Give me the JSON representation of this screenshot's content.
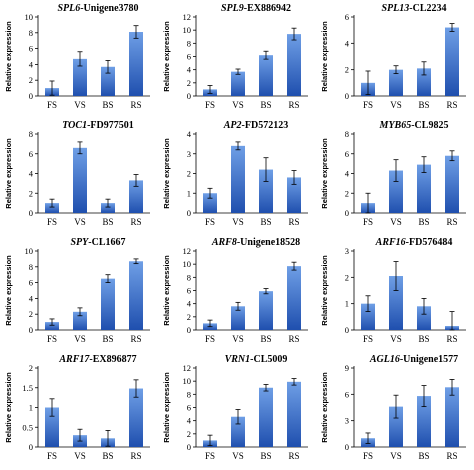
{
  "bar_colors": {
    "top": "#6f9fe6",
    "bottom": "#1f4fae"
  },
  "chart_data": [
    {
      "type": "bar",
      "title_gene": "SPL6",
      "title_id": "-Unigene3780",
      "ylabel": "Relative expression",
      "categories": [
        "FS",
        "VS",
        "BS",
        "RS"
      ],
      "ylim": [
        0,
        10
      ],
      "yticks": [
        0,
        2,
        4,
        6,
        8,
        10
      ],
      "values": [
        1.0,
        4.7,
        3.7,
        8.1
      ],
      "errors": [
        0.9,
        0.9,
        0.8,
        0.8
      ]
    },
    {
      "type": "bar",
      "title_gene": "SPL9",
      "title_id": "-EX886942",
      "ylabel": "Relative expression",
      "categories": [
        "FS",
        "VS",
        "BS",
        "RS"
      ],
      "ylim": [
        0,
        12
      ],
      "yticks": [
        0,
        2,
        4,
        6,
        8,
        10,
        12
      ],
      "values": [
        1.0,
        3.7,
        6.2,
        9.4
      ],
      "errors": [
        0.6,
        0.4,
        0.6,
        0.9
      ]
    },
    {
      "type": "bar",
      "title_gene": "SPL13",
      "title_id": "-CL2234",
      "ylabel": "Relative expression",
      "categories": [
        "FS",
        "VS",
        "BS",
        "RS"
      ],
      "ylim": [
        0,
        6
      ],
      "yticks": [
        0,
        2,
        4,
        6
      ],
      "values": [
        1.0,
        2.0,
        2.1,
        5.2
      ],
      "errors": [
        0.9,
        0.3,
        0.5,
        0.3
      ]
    },
    {
      "type": "bar",
      "title_gene": "TOC1",
      "title_id": "-FD977501",
      "ylabel": "Relative expression",
      "categories": [
        "FS",
        "VS",
        "BS",
        "RS"
      ],
      "ylim": [
        0,
        8
      ],
      "yticks": [
        0,
        2,
        4,
        6,
        8
      ],
      "values": [
        1.0,
        6.6,
        1.0,
        3.3
      ],
      "errors": [
        0.4,
        0.6,
        0.4,
        0.6
      ]
    },
    {
      "type": "bar",
      "title_gene": "AP2",
      "title_id": "-FD572123",
      "ylabel": "Relative expression",
      "categories": [
        "FS",
        "VS",
        "BS",
        "RS"
      ],
      "ylim": [
        0,
        4
      ],
      "yticks": [
        0,
        1,
        2,
        3,
        4
      ],
      "values": [
        1.0,
        3.4,
        2.2,
        1.8
      ],
      "errors": [
        0.25,
        0.2,
        0.6,
        0.35
      ]
    },
    {
      "type": "bar",
      "title_gene": "MYB65",
      "title_id": "-CL9825",
      "ylabel": "Relative expression",
      "categories": [
        "FS",
        "VS",
        "BS",
        "RS"
      ],
      "ylim": [
        0,
        8
      ],
      "yticks": [
        0,
        2,
        4,
        6,
        8
      ],
      "values": [
        1.0,
        4.3,
        4.9,
        5.8
      ],
      "errors": [
        1.0,
        1.1,
        0.8,
        0.5
      ]
    },
    {
      "type": "bar",
      "title_gene": "SPY",
      "title_id": "-CL1667",
      "ylabel": "Relative expression",
      "categories": [
        "FS",
        "VS",
        "BS",
        "RS"
      ],
      "ylim": [
        0,
        10
      ],
      "yticks": [
        0,
        2,
        4,
        6,
        8,
        10
      ],
      "values": [
        1.0,
        2.3,
        6.5,
        8.7
      ],
      "errors": [
        0.4,
        0.5,
        0.5,
        0.3
      ]
    },
    {
      "type": "bar",
      "title_gene": "ARF8",
      "title_id": "-Unigene18528",
      "ylabel": "Relative expression",
      "categories": [
        "FS",
        "VS",
        "BS",
        "RS"
      ],
      "ylim": [
        0,
        12
      ],
      "yticks": [
        0,
        2,
        4,
        6,
        8,
        10,
        12
      ],
      "values": [
        1.0,
        3.6,
        5.9,
        9.7
      ],
      "errors": [
        0.5,
        0.6,
        0.4,
        0.6
      ]
    },
    {
      "type": "bar",
      "title_gene": "ARF16",
      "title_id": "-FD576484",
      "ylabel": "Relative expression",
      "categories": [
        "FS",
        "VS",
        "BS",
        "RS"
      ],
      "ylim": [
        0,
        3
      ],
      "yticks": [
        0,
        1,
        2,
        3
      ],
      "values": [
        1.0,
        2.05,
        0.9,
        0.15
      ],
      "errors": [
        0.3,
        0.55,
        0.3,
        0.55
      ]
    },
    {
      "type": "bar",
      "title_gene": "ARF17",
      "title_id": "-EX896877",
      "ylabel": "Relative expression",
      "categories": [
        "FS",
        "VS",
        "BS",
        "RS"
      ],
      "ylim": [
        0,
        2
      ],
      "yticks": [
        0,
        0.5,
        1,
        1.5,
        2
      ],
      "ytick_labels": [
        "0",
        "0.5",
        "1",
        "1.5",
        "2"
      ],
      "values": [
        1.0,
        0.3,
        0.22,
        1.48
      ],
      "errors": [
        0.22,
        0.15,
        0.2,
        0.22
      ]
    },
    {
      "type": "bar",
      "title_gene": "VRN1",
      "title_id": "-CL5009",
      "ylabel": "Relative expression",
      "categories": [
        "FS",
        "VS",
        "BS",
        "RS"
      ],
      "ylim": [
        0,
        12
      ],
      "yticks": [
        0,
        2,
        4,
        6,
        8,
        10,
        12
      ],
      "values": [
        1.0,
        4.6,
        9.0,
        9.9
      ],
      "errors": [
        0.8,
        1.1,
        0.5,
        0.5
      ]
    },
    {
      "type": "bar",
      "title_gene": "AGL16",
      "title_id": "-Unigene1577",
      "ylabel": "Relative expression",
      "categories": [
        "FS",
        "VS",
        "BS",
        "RS"
      ],
      "ylim": [
        0,
        9
      ],
      "yticks": [
        0,
        3,
        6,
        9
      ],
      "values": [
        1.0,
        4.6,
        5.8,
        6.8
      ],
      "errors": [
        0.6,
        1.3,
        1.2,
        0.9
      ]
    }
  ]
}
